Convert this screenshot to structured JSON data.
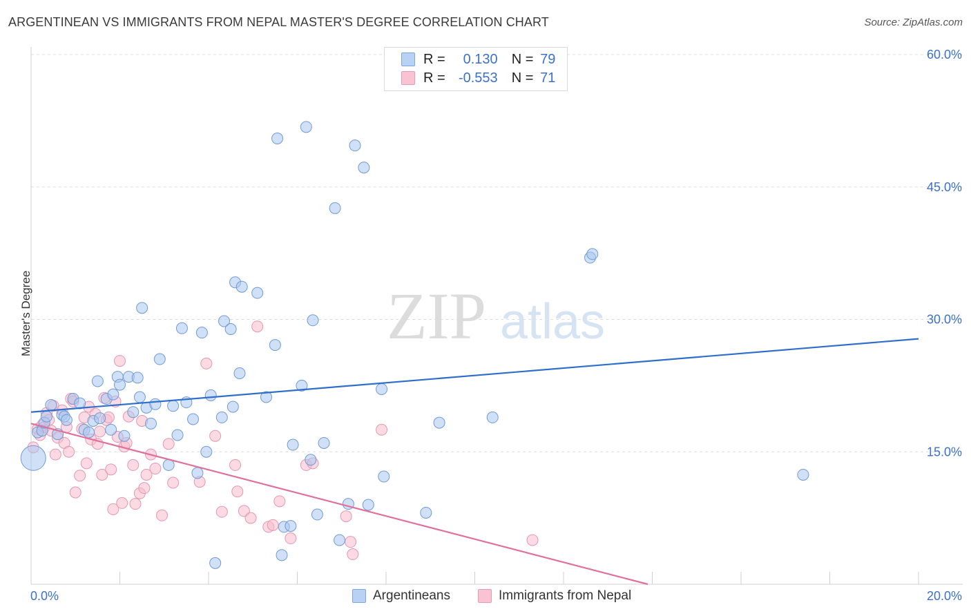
{
  "title": "ARGENTINEAN VS IMMIGRANTS FROM NEPAL MASTER'S DEGREE CORRELATION CHART",
  "source": "Source: ZipAtlas.com",
  "watermark": {
    "zip": "ZIP",
    "atlas": "atlas"
  },
  "legend_top": {
    "r_label": "R =",
    "n_label": "N =",
    "rows": [
      {
        "r": "0.130",
        "n": "79"
      },
      {
        "r": "-0.553",
        "n": "71"
      }
    ]
  },
  "legend_bottom": [
    "Argentineans",
    "Immigrants from Nepal"
  ],
  "colors": {
    "blue_fill": "#a9c6ee",
    "blue_stroke": "#6f9ad6",
    "blue_line": "#2f6fcc",
    "pink_fill": "#f7bccd",
    "pink_stroke": "#e596b1",
    "pink_line": "#e0709a",
    "tick_label": "#3b71c9",
    "grid": "#dddddd"
  },
  "chart_data": {
    "type": "scatter",
    "title": "ARGENTINEAN VS IMMIGRANTS FROM NEPAL MASTER'S DEGREE CORRELATION CHART",
    "xlabel": "",
    "ylabel": "Master's Degree",
    "xlim": [
      0,
      20
    ],
    "ylim": [
      0,
      60
    ],
    "x_tick_labels": [
      "0.0%",
      "20.0%"
    ],
    "y_ticks": [
      15,
      30,
      45,
      60
    ],
    "y_tick_labels": [
      "15.0%",
      "30.0%",
      "45.0%",
      "60.0%"
    ],
    "grid": true,
    "series": [
      {
        "name": "Argentineans",
        "r": 0.13,
        "n": 79,
        "trend": {
          "x": [
            0,
            20
          ],
          "y": [
            19.5,
            27.8
          ]
        },
        "points": [
          [
            0.15,
            17.2
          ],
          [
            0.25,
            17.4
          ],
          [
            0.3,
            18.3
          ],
          [
            0.35,
            19.0
          ],
          [
            0.45,
            20.3
          ],
          [
            0.6,
            17.0
          ],
          [
            0.7,
            19.2
          ],
          [
            0.75,
            19.0
          ],
          [
            0.8,
            18.6
          ],
          [
            0.95,
            21.0
          ],
          [
            1.1,
            20.5
          ],
          [
            1.2,
            17.5
          ],
          [
            1.3,
            17.2
          ],
          [
            1.4,
            18.5
          ],
          [
            1.5,
            23.0
          ],
          [
            1.55,
            18.8
          ],
          [
            1.7,
            21.0
          ],
          [
            1.8,
            17.5
          ],
          [
            1.85,
            21.5
          ],
          [
            1.95,
            23.5
          ],
          [
            2.0,
            22.6
          ],
          [
            2.1,
            16.8
          ],
          [
            2.2,
            23.5
          ],
          [
            2.3,
            19.5
          ],
          [
            2.4,
            23.4
          ],
          [
            2.45,
            21.2
          ],
          [
            2.5,
            31.3
          ],
          [
            2.6,
            20.0
          ],
          [
            2.7,
            18.2
          ],
          [
            2.8,
            20.4
          ],
          [
            2.9,
            25.5
          ],
          [
            3.1,
            13.5
          ],
          [
            3.2,
            20.2
          ],
          [
            3.3,
            16.9
          ],
          [
            3.4,
            29.0
          ],
          [
            3.5,
            20.6
          ],
          [
            3.65,
            18.7
          ],
          [
            3.75,
            12.6
          ],
          [
            3.85,
            28.5
          ],
          [
            3.95,
            15.0
          ],
          [
            4.05,
            21.4
          ],
          [
            4.15,
            2.4
          ],
          [
            4.3,
            18.9
          ],
          [
            4.35,
            29.8
          ],
          [
            4.5,
            28.9
          ],
          [
            4.55,
            20.1
          ],
          [
            4.6,
            34.2
          ],
          [
            4.7,
            23.9
          ],
          [
            4.75,
            33.7
          ],
          [
            5.1,
            33.0
          ],
          [
            5.3,
            21.2
          ],
          [
            5.5,
            27.1
          ],
          [
            5.55,
            50.5
          ],
          [
            5.65,
            3.3
          ],
          [
            5.7,
            6.5
          ],
          [
            5.85,
            6.6
          ],
          [
            5.9,
            15.8
          ],
          [
            6.1,
            22.5
          ],
          [
            6.2,
            51.8
          ],
          [
            6.3,
            14.1
          ],
          [
            6.35,
            29.9
          ],
          [
            6.45,
            7.9
          ],
          [
            6.6,
            16.0
          ],
          [
            6.85,
            42.6
          ],
          [
            6.95,
            5.0
          ],
          [
            7.15,
            9.1
          ],
          [
            7.3,
            49.7
          ],
          [
            7.5,
            47.2
          ],
          [
            7.6,
            9.0
          ],
          [
            7.9,
            22.1
          ],
          [
            7.95,
            12.2
          ],
          [
            8.9,
            8.1
          ],
          [
            9.2,
            18.3
          ],
          [
            10.4,
            18.9
          ],
          [
            12.6,
            37.0
          ],
          [
            12.65,
            37.4
          ],
          [
            17.4,
            12.4
          ],
          [
            0.05,
            14.3
          ]
        ]
      },
      {
        "name": "Immigrants from Nepal",
        "r": -0.553,
        "n": 71,
        "trend": {
          "x": [
            0,
            13.9
          ],
          "y": [
            18.2,
            0.0
          ]
        },
        "points": [
          [
            0.05,
            15.5
          ],
          [
            0.15,
            17.6
          ],
          [
            0.2,
            16.9
          ],
          [
            0.25,
            18.0
          ],
          [
            0.3,
            17.8
          ],
          [
            0.35,
            19.4
          ],
          [
            0.4,
            18.6
          ],
          [
            0.45,
            17.4
          ],
          [
            0.5,
            20.2
          ],
          [
            0.55,
            14.7
          ],
          [
            0.6,
            16.6
          ],
          [
            0.7,
            19.7
          ],
          [
            0.75,
            16.0
          ],
          [
            0.8,
            17.8
          ],
          [
            0.85,
            15.0
          ],
          [
            0.9,
            21.0
          ],
          [
            0.95,
            20.7
          ],
          [
            1.0,
            10.4
          ],
          [
            1.1,
            12.3
          ],
          [
            1.15,
            17.6
          ],
          [
            1.2,
            18.9
          ],
          [
            1.25,
            13.7
          ],
          [
            1.3,
            20.1
          ],
          [
            1.35,
            16.4
          ],
          [
            1.45,
            19.3
          ],
          [
            1.5,
            15.9
          ],
          [
            1.55,
            17.3
          ],
          [
            1.6,
            12.4
          ],
          [
            1.65,
            21.1
          ],
          [
            1.7,
            18.6
          ],
          [
            1.75,
            18.9
          ],
          [
            1.8,
            13.0
          ],
          [
            1.85,
            8.5
          ],
          [
            1.9,
            20.7
          ],
          [
            1.95,
            16.7
          ],
          [
            2.0,
            25.3
          ],
          [
            2.05,
            9.2
          ],
          [
            2.1,
            15.6
          ],
          [
            2.15,
            16.0
          ],
          [
            2.2,
            19.0
          ],
          [
            2.3,
            13.5
          ],
          [
            2.35,
            9.1
          ],
          [
            2.45,
            10.3
          ],
          [
            2.5,
            18.5
          ],
          [
            2.55,
            10.9
          ],
          [
            2.6,
            12.4
          ],
          [
            2.7,
            14.7
          ],
          [
            2.8,
            13.1
          ],
          [
            2.95,
            7.8
          ],
          [
            3.1,
            15.9
          ],
          [
            3.2,
            11.5
          ],
          [
            3.8,
            11.6
          ],
          [
            3.95,
            25.0
          ],
          [
            4.15,
            16.8
          ],
          [
            4.3,
            8.2
          ],
          [
            4.6,
            13.5
          ],
          [
            4.65,
            10.5
          ],
          [
            4.8,
            8.3
          ],
          [
            4.95,
            7.5
          ],
          [
            5.1,
            29.2
          ],
          [
            5.35,
            6.5
          ],
          [
            5.45,
            6.7
          ],
          [
            5.6,
            9.4
          ],
          [
            5.85,
            5.2
          ],
          [
            6.2,
            13.5
          ],
          [
            6.35,
            13.7
          ],
          [
            7.1,
            7.7
          ],
          [
            7.2,
            4.8
          ],
          [
            7.25,
            3.4
          ],
          [
            7.9,
            17.5
          ],
          [
            11.3,
            5.0
          ]
        ]
      }
    ]
  }
}
